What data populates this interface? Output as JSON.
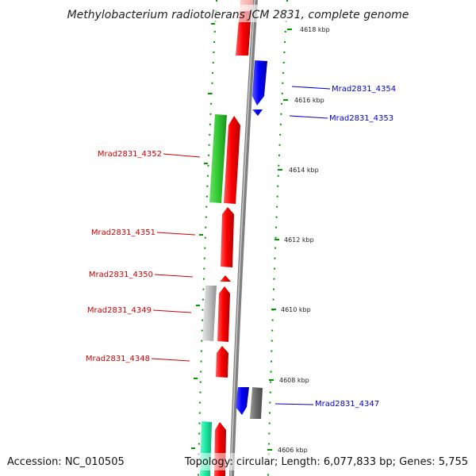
{
  "title": "Methylobacterium radiotolerans JCM 2831, complete genome",
  "footer": {
    "accession": "Accession: NC_010505",
    "topology": "Topology: circular; Length: 6,077,833 bp; Genes: 5,755"
  },
  "colors": {
    "forward_gene": "#ff0000",
    "reverse_gene": "#0000ff",
    "label_forward": "#cc0000",
    "label_reverse": "#0000cc",
    "backbone": "#808080",
    "tick_marks": "#009900"
  },
  "kbp_ticks": [
    "4618 kbp",
    "4616 kbp",
    "4614 kbp",
    "4612 kbp",
    "4610 kbp",
    "4608 kbp",
    "4606 kbp"
  ],
  "gene_labels": {
    "g4354": "Mrad2831_4354",
    "g4353": "Mrad2831_4353",
    "g4352": "Mrad2831_4352",
    "g4351": "Mrad2831_4351",
    "g4350": "Mrad2831_4350",
    "g4349": "Mrad2831_4349",
    "g4348": "Mrad2831_4348",
    "g4347": "Mrad2831_4347"
  }
}
